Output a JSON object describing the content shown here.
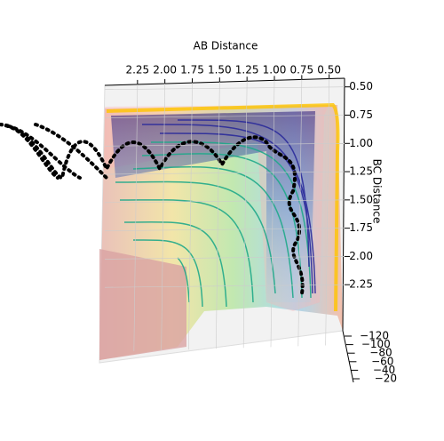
{
  "chart_data": {
    "type": "surface3d",
    "xlabel": "AB Distance",
    "ylabel": "BC Distance",
    "xlim": [
      0.4,
      2.5
    ],
    "xticks": [
      {
        "value": 2.25,
        "label": "2.25"
      },
      {
        "value": 2.0,
        "label": "2.00"
      },
      {
        "value": 1.75,
        "label": "1.75"
      },
      {
        "value": 1.5,
        "label": "1.50"
      },
      {
        "value": 1.25,
        "label": "1.25"
      },
      {
        "value": 1.0,
        "label": "1.00"
      },
      {
        "value": 0.75,
        "label": "0.75"
      },
      {
        "value": 0.5,
        "label": "0.50"
      }
    ],
    "ylim": [
      0.4,
      2.5
    ],
    "yticks": [
      {
        "value": 0.5,
        "label": "0.50"
      },
      {
        "value": 0.75,
        "label": "0.75"
      },
      {
        "value": 1.0,
        "label": "1.00"
      },
      {
        "value": 1.25,
        "label": "1.25"
      },
      {
        "value": 1.5,
        "label": "1.50"
      },
      {
        "value": 1.75,
        "label": "1.75"
      },
      {
        "value": 2.0,
        "label": "2.00"
      },
      {
        "value": 2.25,
        "label": "2.25"
      }
    ],
    "zlim": [
      -130,
      -10
    ],
    "zticks": [
      {
        "value": -120,
        "label": "−120"
      },
      {
        "value": -100,
        "label": "−100"
      },
      {
        "value": -80,
        "label": "−80"
      },
      {
        "value": -60,
        "label": "−60"
      },
      {
        "value": -40,
        "label": "−40"
      },
      {
        "value": -20,
        "label": "−20"
      }
    ]
  }
}
